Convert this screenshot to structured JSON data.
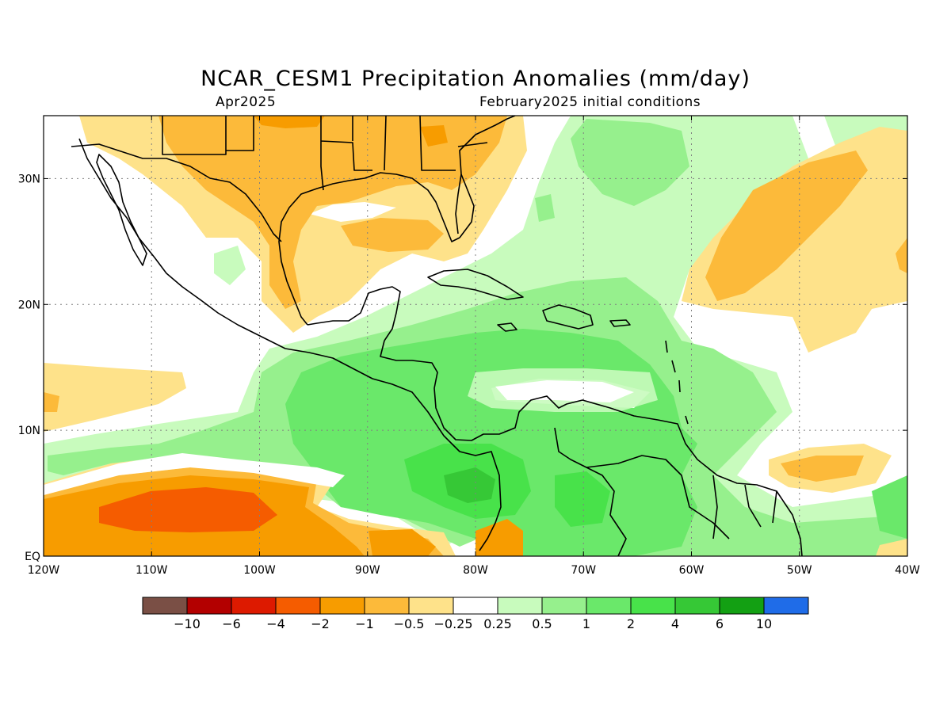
{
  "title": "NCAR_CESM1 Precipitation Anomalies (mm/day)",
  "subtitle_left": "Apr2025",
  "subtitle_right": "February2025 initial conditions",
  "map": {
    "lon_range": [
      -120,
      -40
    ],
    "lat_range": [
      0,
      35
    ],
    "x_tick_labels": [
      "120W",
      "110W",
      "100W",
      "90W",
      "80W",
      "70W",
      "60W",
      "50W",
      "40W"
    ],
    "y_tick_labels": [
      "EQ",
      "10N",
      "20N",
      "30N"
    ],
    "gridlines": true
  },
  "colorbar": {
    "colors": [
      "#7a4f45",
      "#b30000",
      "#dd1a00",
      "#f55c00",
      "#f79c00",
      "#fcba3a",
      "#fee28a",
      "#ffffff",
      "#c8fbbd",
      "#96f08d",
      "#6ae86a",
      "#48e24a",
      "#36c836",
      "#13a013",
      "#1f6ce8"
    ],
    "labels": [
      "−10",
      "−6",
      "−4",
      "−2",
      "−1",
      "−0.5",
      "−0.25",
      "0.25",
      "0.5",
      "1",
      "2",
      "4",
      "6",
      "10"
    ]
  },
  "colors": {
    "land_outline": "#000000",
    "grid": "#808080"
  }
}
